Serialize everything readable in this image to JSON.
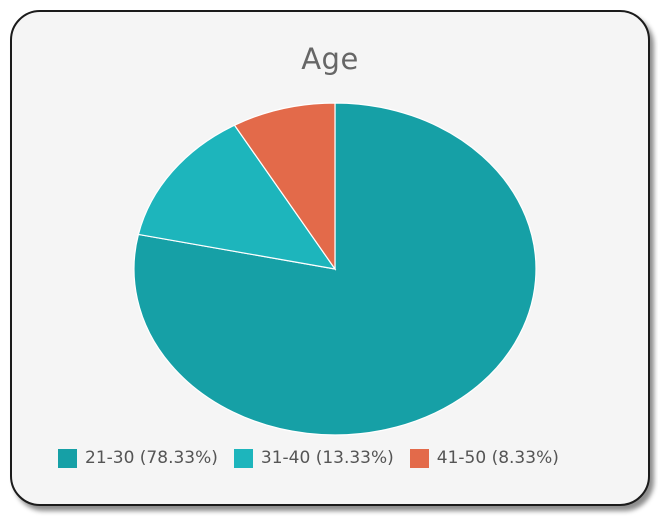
{
  "chart_data": {
    "type": "pie",
    "title": "Age",
    "categories": [
      "21-30",
      "31-40",
      "41-50"
    ],
    "values": [
      78.33,
      13.33,
      8.33
    ],
    "value_unit": "%",
    "colors": [
      "#16A0A6",
      "#1DB5BC",
      "#E36A4A"
    ],
    "legend_labels": [
      "21-30 (78.33%)",
      "31-40 (13.33%)",
      "41-50 (8.33%)"
    ],
    "legend_placement": "bottom",
    "start_angle": "12 o'clock",
    "direction": "clockwise"
  }
}
